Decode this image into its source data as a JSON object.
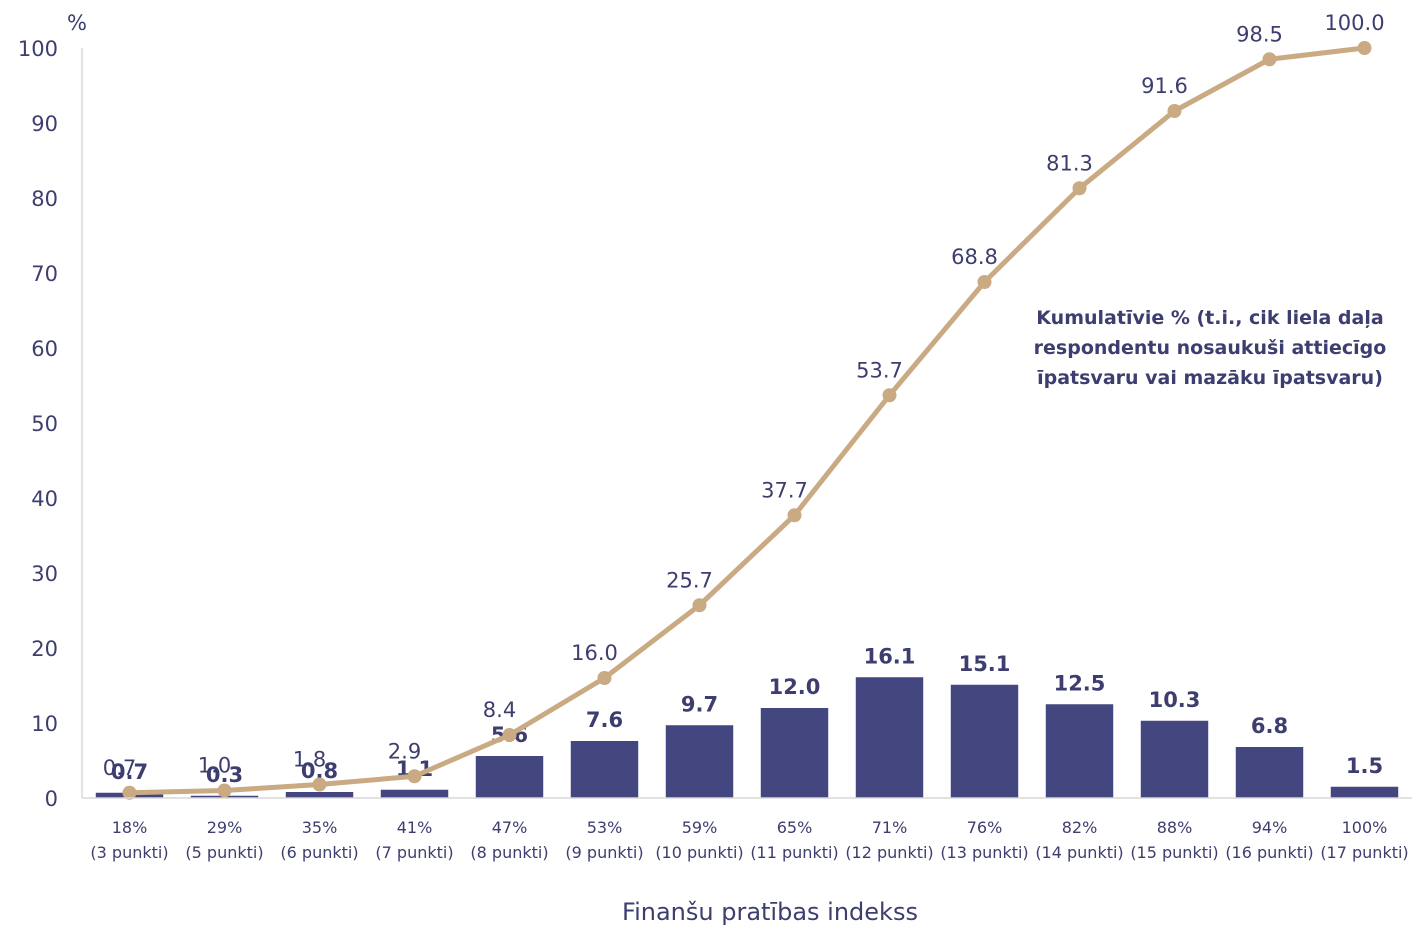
{
  "chart_data": {
    "type": "bar",
    "categories": [
      [
        "18%",
        "(3 punkti)"
      ],
      [
        "29%",
        "(5 punkti)"
      ],
      [
        "35%",
        "(6 punkti)"
      ],
      [
        "41%",
        "(7 punkti)"
      ],
      [
        "47%",
        "(8 punkti)"
      ],
      [
        "53%",
        "(9 punkti)"
      ],
      [
        "59%",
        "(10 punkti)"
      ],
      [
        "65%",
        "(11 punkti)"
      ],
      [
        "71%",
        "(12 punkti)"
      ],
      [
        "76%",
        "(13 punkti)"
      ],
      [
        "82%",
        "(14 punkti)"
      ],
      [
        "88%",
        "(15 punkti)"
      ],
      [
        "94%",
        "(16 punkti)"
      ],
      [
        "100%",
        "(17 punkti)"
      ]
    ],
    "series": [
      {
        "type": "bar",
        "values": [
          0.7,
          0.3,
          0.8,
          1.1,
          5.6,
          7.6,
          9.7,
          12.0,
          16.1,
          15.1,
          12.5,
          10.3,
          6.8,
          1.5
        ],
        "labels": [
          "0.7",
          "0.3",
          "0.8",
          "1.1",
          "5.6",
          "7.6",
          "9.7",
          "12.0",
          "16.1",
          "15.1",
          "12.5",
          "10.3",
          "6.8",
          "1.5"
        ]
      },
      {
        "type": "line",
        "values": [
          0.7,
          1.0,
          1.8,
          2.9,
          8.4,
          16.0,
          25.7,
          37.7,
          53.7,
          68.8,
          81.3,
          91.6,
          98.5,
          100.0
        ],
        "labels": [
          "0.7",
          "1.0",
          "1.8",
          "2.9",
          "8.4",
          "16.0",
          "25.7",
          "37.7",
          "53.7",
          "68.8",
          "81.3",
          "91.6",
          "98.5",
          "100.0"
        ]
      }
    ],
    "xlabel": "Finanšu pratības indekss",
    "yunit": "%",
    "ylim": [
      0,
      100
    ],
    "yticks": [
      "0",
      "10",
      "20",
      "30",
      "40",
      "50",
      "60",
      "70",
      "80",
      "90",
      "100"
    ],
    "annotation": [
      "Kumulatīvie % (t.i., cik liela daļa",
      "respondentu nosaukuši attiecīgo",
      "īpatsvaru vai mazāku īpatsvaru)"
    ],
    "grid": false,
    "colors": {
      "bar": "#43467f",
      "line": "#c9aa83",
      "text": "#3d3e6f",
      "axis": "#d9d9d9"
    }
  }
}
